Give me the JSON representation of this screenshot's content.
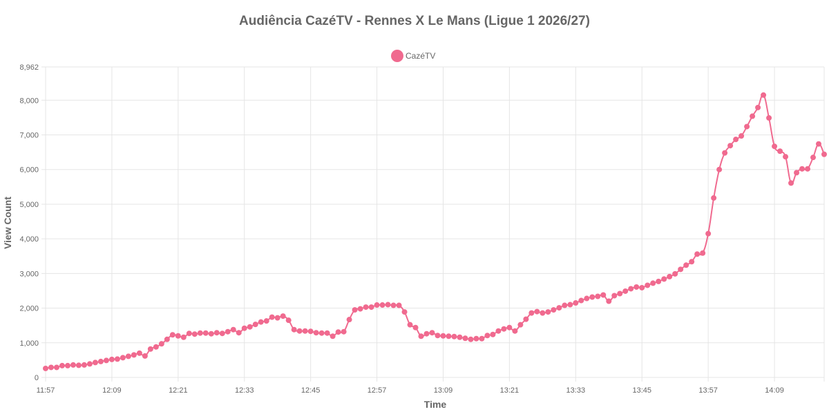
{
  "chart_data": {
    "type": "line",
    "title": "Audiência CazéTV - Rennes X Le Mans (Ligue 1 2026/27)",
    "xlabel": "Time",
    "ylabel": "View Count",
    "ylim": [
      0,
      8962
    ],
    "y_ticks": [
      "0",
      "1,000",
      "2,000",
      "3,000",
      "4,000",
      "5,000",
      "6,000",
      "7,000",
      "8,000",
      "8,962"
    ],
    "x_start": "11:57",
    "x_end": "14:17",
    "x_ticks": [
      "11:57",
      "12:09",
      "12:21",
      "12:33",
      "12:45",
      "12:57",
      "13:09",
      "13:21",
      "13:33",
      "13:45",
      "13:57",
      "14:09"
    ],
    "grid": true,
    "legend_position": "top",
    "series": [
      {
        "name": "CazéTV",
        "color": "#f06a8f",
        "values": [
          260,
          290,
          290,
          340,
          340,
          360,
          350,
          360,
          390,
          430,
          460,
          490,
          520,
          530,
          570,
          610,
          650,
          700,
          620,
          820,
          880,
          970,
          1100,
          1230,
          1200,
          1160,
          1270,
          1250,
          1280,
          1280,
          1260,
          1290,
          1270,
          1320,
          1380,
          1290,
          1420,
          1460,
          1530,
          1600,
          1630,
          1740,
          1720,
          1770,
          1650,
          1380,
          1340,
          1340,
          1330,
          1290,
          1280,
          1280,
          1190,
          1310,
          1320,
          1670,
          1950,
          1980,
          2030,
          2030,
          2090,
          2090,
          2100,
          2080,
          2080,
          1890,
          1520,
          1440,
          1190,
          1260,
          1290,
          1210,
          1200,
          1190,
          1180,
          1160,
          1130,
          1100,
          1120,
          1120,
          1210,
          1240,
          1340,
          1400,
          1440,
          1340,
          1520,
          1680,
          1860,
          1900,
          1860,
          1890,
          1950,
          2010,
          2080,
          2100,
          2150,
          2220,
          2280,
          2320,
          2340,
          2380,
          2200,
          2360,
          2420,
          2490,
          2560,
          2610,
          2590,
          2660,
          2720,
          2770,
          2840,
          2910,
          2990,
          3120,
          3240,
          3340,
          3560,
          3590,
          4150,
          5180,
          6000,
          6480,
          6690,
          6870,
          6970,
          7240,
          7540,
          7790,
          8150,
          7490,
          6670,
          6530,
          6370,
          5610,
          5910,
          6020,
          6020,
          6350,
          6740,
          6440
        ]
      }
    ]
  }
}
